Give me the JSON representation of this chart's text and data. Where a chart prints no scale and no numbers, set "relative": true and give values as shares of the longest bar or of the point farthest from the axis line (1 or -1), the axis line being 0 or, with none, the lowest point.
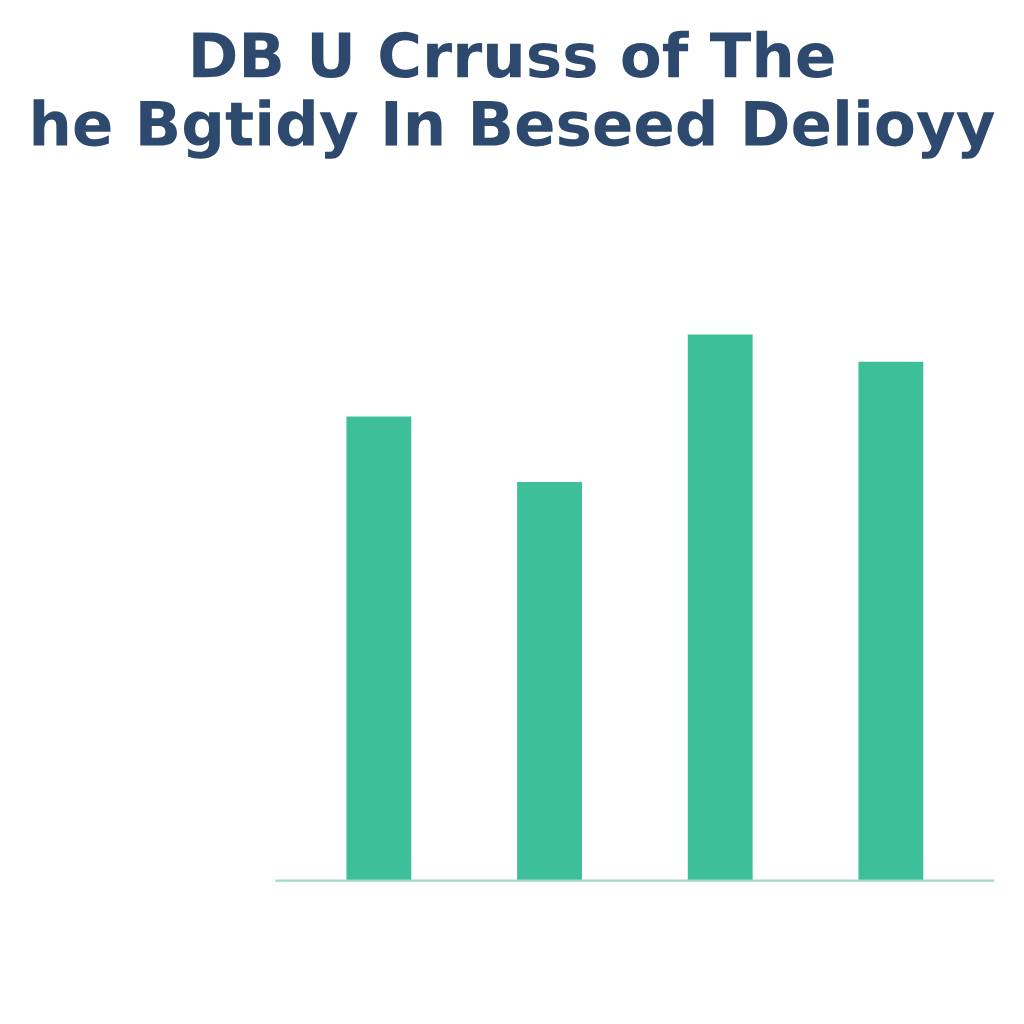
{
  "chart_data": {
    "type": "bar",
    "title": "DB U Crruss of The\nhe Bgtidy In Beseed Delioyy",
    "categories": [
      null,
      null,
      null,
      null
    ],
    "relative": true,
    "values": [
      0.85,
      0.73,
      1,
      0.95
    ],
    "color": "#3dbf9a",
    "grid": false,
    "legend": false
  }
}
